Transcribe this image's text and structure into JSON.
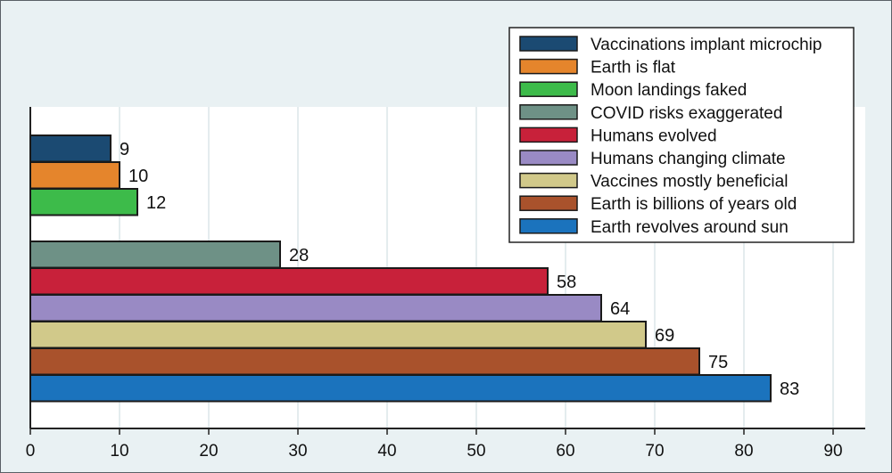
{
  "chart_data": {
    "type": "bar",
    "orientation": "horizontal",
    "title": "",
    "xlabel": "",
    "ylabel": "",
    "xlim": [
      0,
      93
    ],
    "xticks": [
      0,
      10,
      20,
      30,
      40,
      50,
      60,
      70,
      80,
      90
    ],
    "grid": true,
    "legend_position": "top-right",
    "groups": [
      [
        "Vaccinations implant microchip",
        "Earth is flat",
        "Moon landings faked"
      ],
      [
        "COVID risks exaggerated",
        "Humans evolved",
        "Humans changing climate",
        "Vaccines mostly beneficial",
        "Earth is billions of years old",
        "Earth revolves around sun"
      ]
    ],
    "series": [
      {
        "name": "Vaccinations implant microchip",
        "value": 9,
        "color": "#1b4a72"
      },
      {
        "name": "Earth is flat",
        "value": 10,
        "color": "#e5852c"
      },
      {
        "name": "Moon landings faked",
        "value": 12,
        "color": "#3dbb4a"
      },
      {
        "name": "COVID risks exaggerated",
        "value": 28,
        "color": "#6e9186"
      },
      {
        "name": "Humans evolved",
        "value": 58,
        "color": "#c8213a"
      },
      {
        "name": "Humans changing climate",
        "value": 64,
        "color": "#998ac4"
      },
      {
        "name": "Vaccines mostly beneficial",
        "value": 69,
        "color": "#d1c98a"
      },
      {
        "name": "Earth is billions of years old",
        "value": 75,
        "color": "#a9522c"
      },
      {
        "name": "Earth revolves around sun",
        "value": 83,
        "color": "#1b73bd"
      }
    ]
  }
}
